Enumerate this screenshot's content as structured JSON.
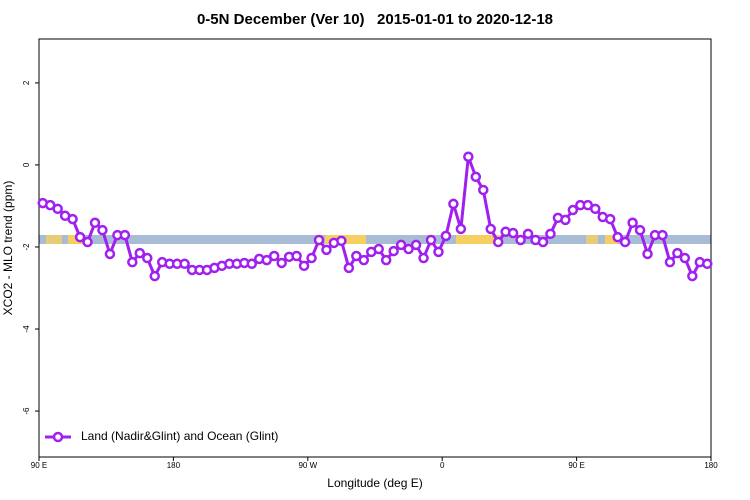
{
  "chart_data": {
    "type": "line",
    "title": "0-5N December (Ver 10)   2015-01-01 to 2020-12-18",
    "x_label": "Longitude (deg E)",
    "y_label": "XCO2 - MLO trend (ppm)",
    "x": [
      92.5,
      97.5,
      102.5,
      107.5,
      112.5,
      117.5,
      122.5,
      127.5,
      132.5,
      137.5,
      142.5,
      147.5,
      152.5,
      157.5,
      162.5,
      167.5,
      172.5,
      177.5,
      182.5,
      187.5,
      192.5,
      197.5,
      202.5,
      207.5,
      212.5,
      217.5,
      222.5,
      227.5,
      232.5,
      237.5,
      242.5,
      247.5,
      252.5,
      257.5,
      262.5,
      267.5,
      272.5,
      277.5,
      282.5,
      287.5,
      292.5,
      297.5,
      302.5,
      307.5,
      312.5,
      317.5,
      322.5,
      327.5,
      332.5,
      337.5,
      342.5,
      347.5,
      352.5,
      357.5,
      362.5,
      367.5,
      372.5,
      377.5,
      382.5,
      387.5,
      392.5,
      397.5,
      402.5,
      407.5,
      412.5,
      417.5,
      422.5,
      427.5,
      432.5,
      437.5,
      442.5,
      447.5,
      452.5,
      457.5,
      462.5,
      467.5,
      472.5,
      477.5,
      482.5,
      487.5,
      492.5,
      497.5,
      502.5,
      507.5,
      512.5,
      517.5,
      522.5,
      527.5,
      532.5,
      537.5
    ],
    "series": [
      {
        "name": "Land (Nadir&Glint) and Ocean (Glint)",
        "color": "#a020f0",
        "values": [
          -0.93,
          -0.98,
          -1.07,
          -1.24,
          -1.32,
          -1.76,
          -1.88,
          -1.41,
          -1.59,
          -2.17,
          -1.71,
          -1.71,
          -2.37,
          -2.15,
          -2.27,
          -2.71,
          -2.37,
          -2.41,
          -2.41,
          -2.41,
          -2.56,
          -2.56,
          -2.56,
          -2.51,
          -2.46,
          -2.41,
          -2.41,
          -2.39,
          -2.41,
          -2.29,
          -2.32,
          -2.22,
          -2.39,
          -2.24,
          -2.22,
          -2.46,
          -2.27,
          -1.83,
          -2.07,
          -1.9,
          -1.85,
          -2.51,
          -2.22,
          -2.32,
          -2.12,
          -2.05,
          -2.32,
          -2.1,
          -1.95,
          -2.05,
          -1.95,
          -2.27,
          -1.83,
          -2.12,
          -1.73,
          -0.95,
          -1.56,
          0.2,
          -0.29,
          -0.61,
          -1.56,
          -1.88,
          -1.63,
          -1.66,
          -1.83,
          -1.68,
          -1.83,
          -1.88,
          -1.68,
          -1.29,
          -1.34,
          -1.1,
          -0.98,
          -0.98,
          -1.07,
          -1.27,
          -1.32,
          -1.76,
          -1.88,
          -1.41,
          -1.59,
          -2.17,
          -1.71,
          -1.71,
          -2.37,
          -2.15,
          -2.27,
          -2.71,
          -2.37,
          -2.41
        ]
      }
    ],
    "xlim": [
      90,
      540
    ],
    "xticks": [
      {
        "value": 90,
        "label": "90 E"
      },
      180,
      {
        "value": 270,
        "label": "90 W"
      },
      {
        "value": 360,
        "label": "0"
      },
      {
        "value": 450,
        "label": "90 E"
      },
      {
        "value": 540,
        "label": "180"
      }
    ],
    "ylim": [
      -7.12,
      3.07
    ],
    "yticks": [
      2,
      0,
      -2,
      -4,
      -6
    ],
    "legend": "bottomleft"
  }
}
